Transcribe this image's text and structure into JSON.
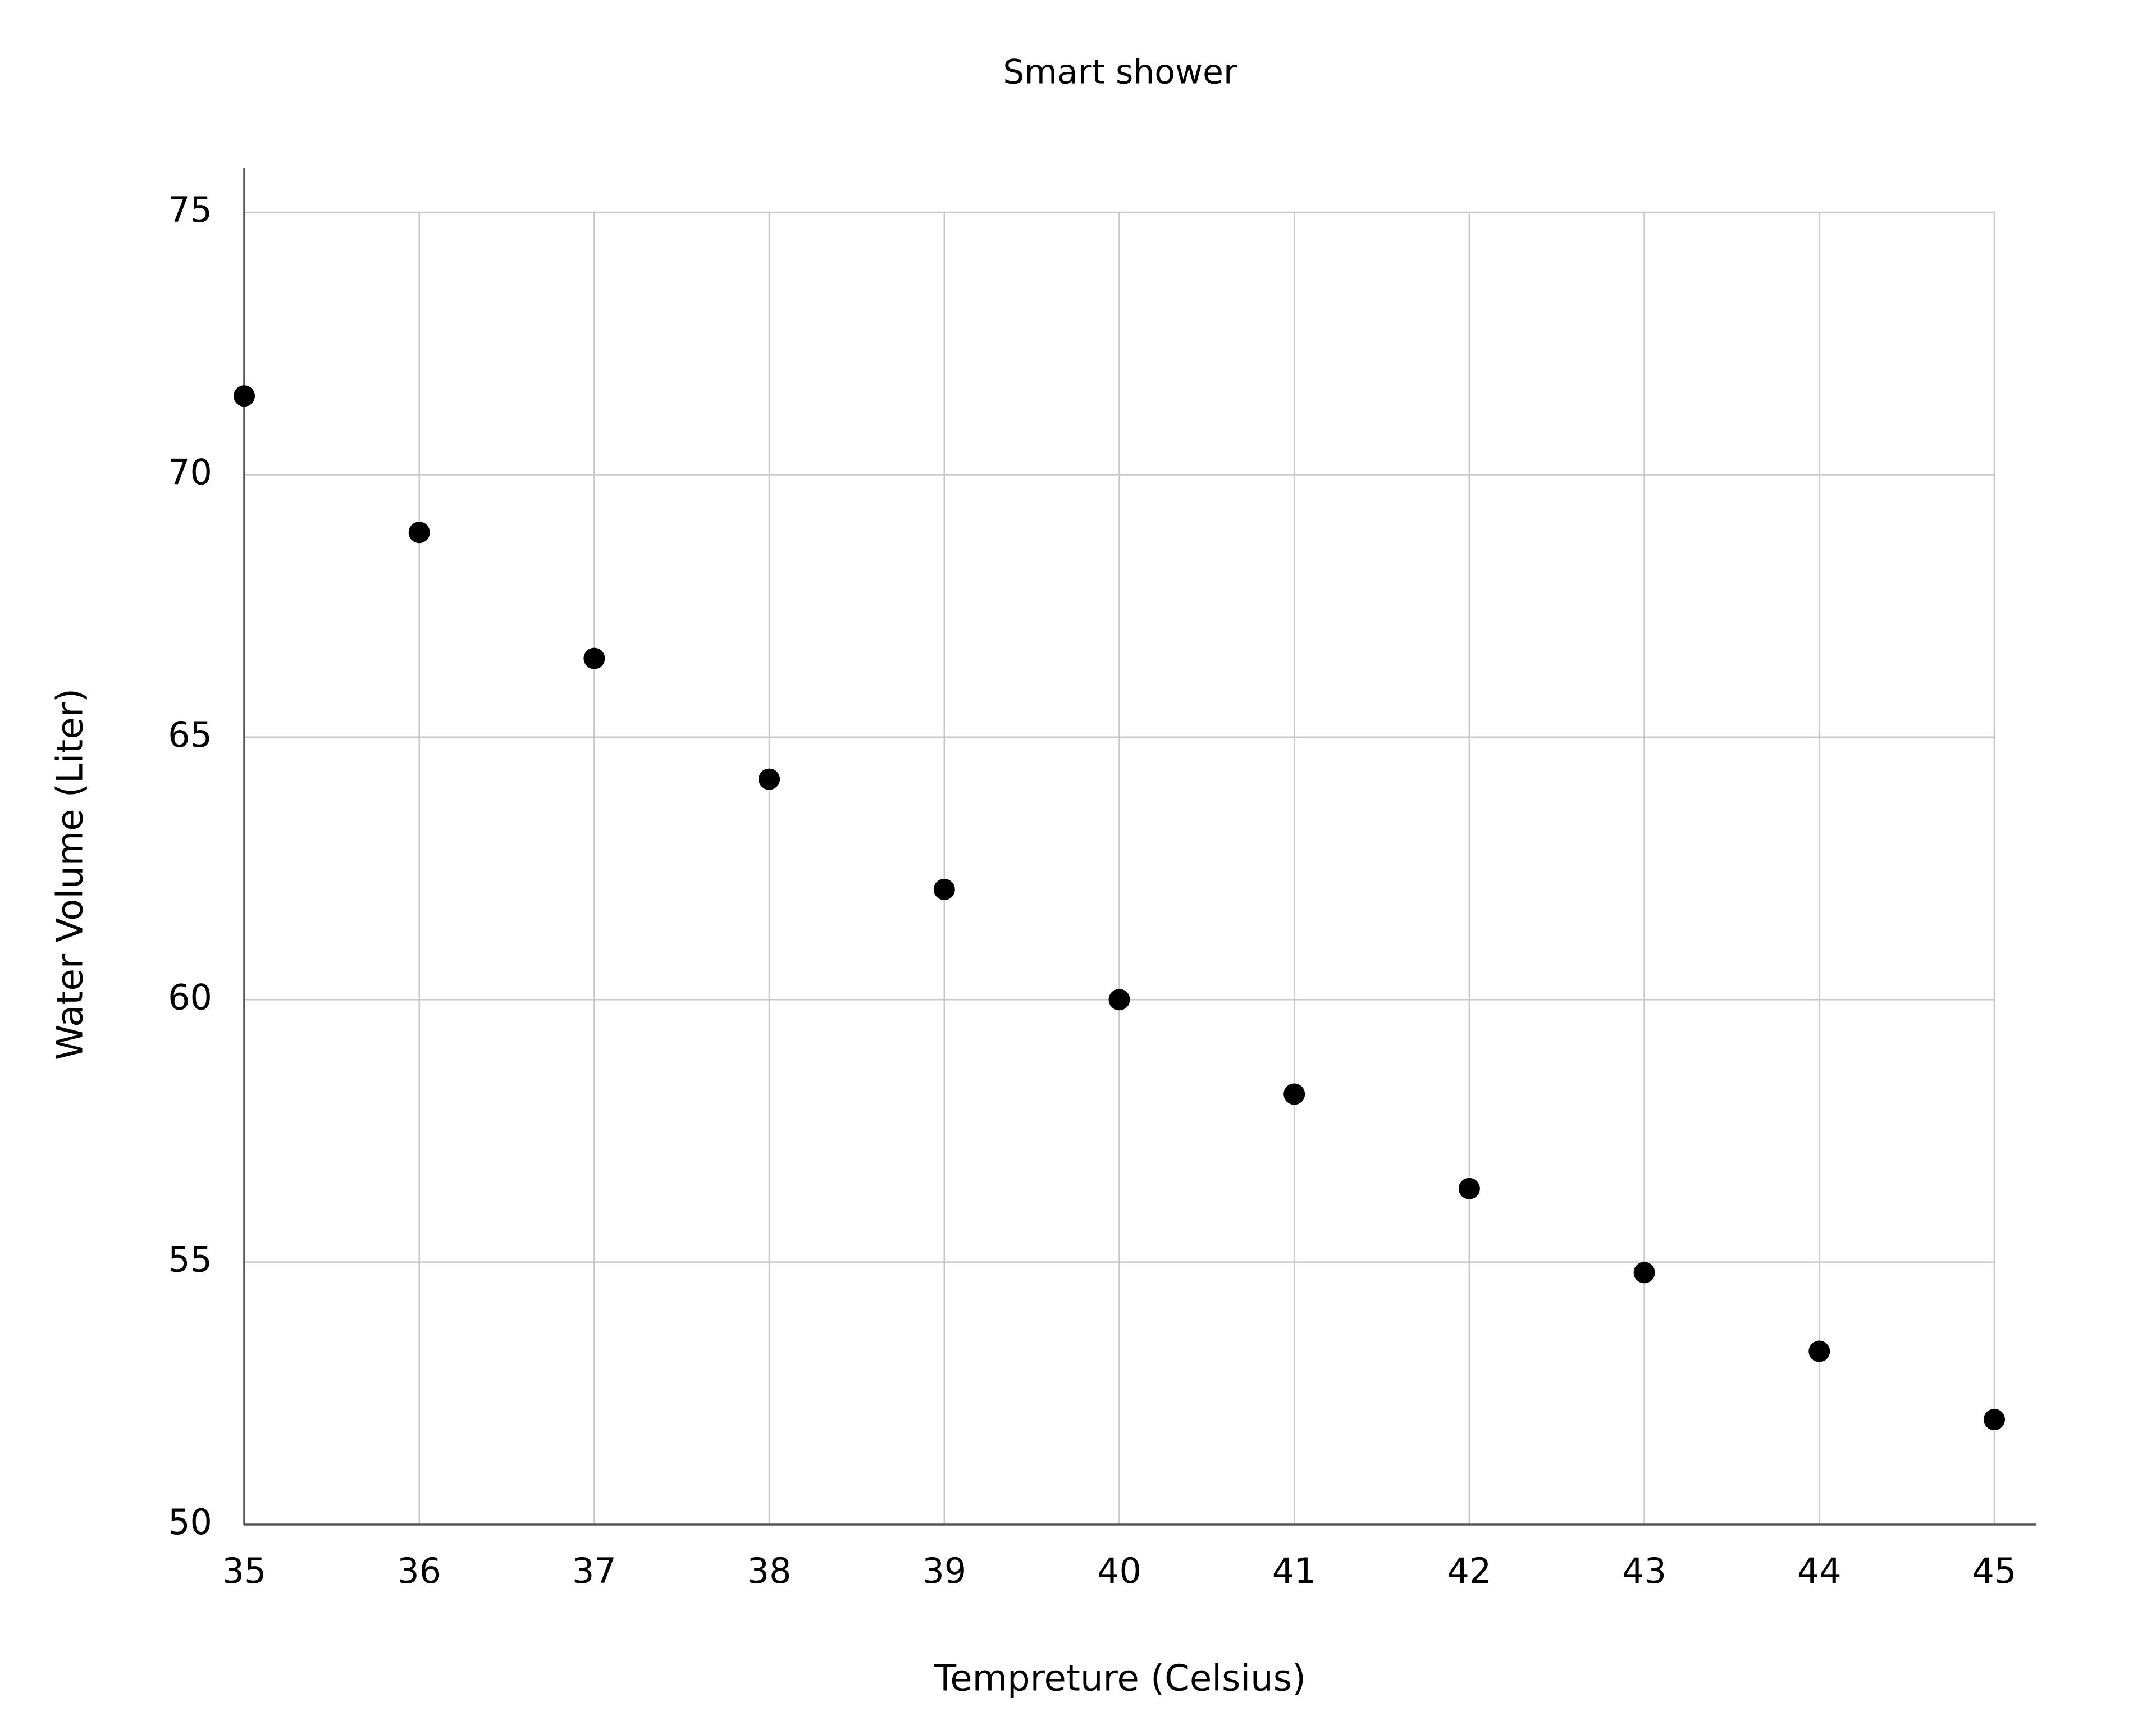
{
  "chart_data": {
    "type": "scatter",
    "title": "Smart shower",
    "x_label": "Tempreture (Celsius)",
    "y_label": "Water Volume (Liter)",
    "x": [
      35,
      36,
      37,
      38,
      39,
      40,
      41,
      42,
      43,
      44,
      45
    ],
    "values": [
      71.5,
      68.9,
      66.5,
      64.2,
      62.1,
      60,
      58.2,
      56.4,
      54.8,
      53.3,
      52.0
    ],
    "color": "#000000",
    "xlim": [
      35,
      45
    ],
    "xticks": [
      35,
      36,
      37,
      38,
      39,
      40,
      41,
      42,
      43,
      44,
      45
    ],
    "ylim": [
      50,
      75
    ],
    "yticks": [
      50,
      55,
      60,
      65,
      70,
      75
    ],
    "grid": true
  }
}
